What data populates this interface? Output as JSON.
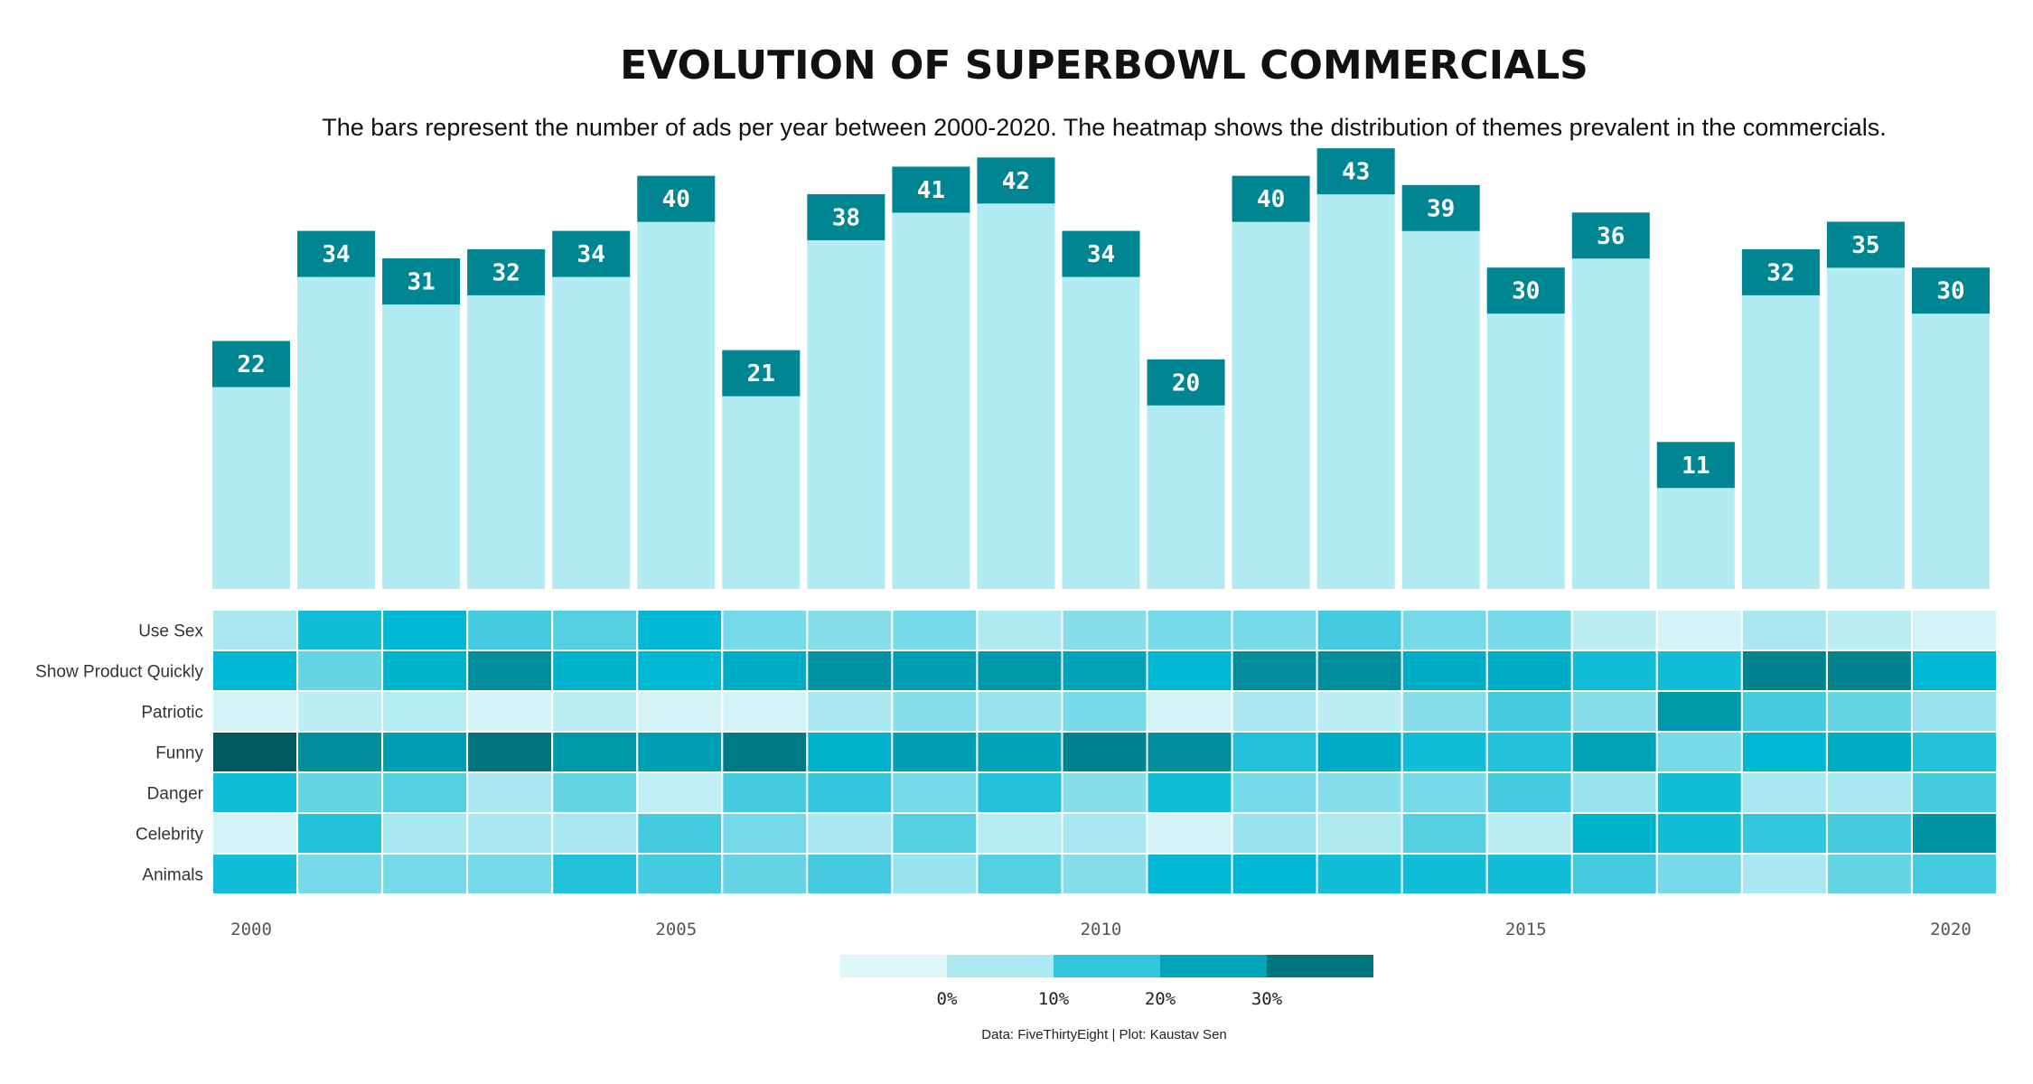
{
  "chart_data": {
    "type": "bar+heatmap",
    "title": "EVOLUTION OF SUPERBOWL COMMERCIALS",
    "subtitle": "The bars represent the number of ads per year between 2000-2020. The heatmap shows the distribution of themes prevalent in the commercials.",
    "caption": "Data: FiveThirtyEight | Plot: Kaustav Sen",
    "years": [
      2000,
      2001,
      2002,
      2003,
      2004,
      2005,
      2006,
      2007,
      2008,
      2009,
      2010,
      2011,
      2012,
      2013,
      2014,
      2015,
      2016,
      2017,
      2018,
      2019,
      2020
    ],
    "ad_counts": [
      22,
      34,
      31,
      32,
      34,
      40,
      21,
      38,
      41,
      42,
      34,
      20,
      40,
      43,
      39,
      30,
      36,
      11,
      32,
      35,
      30
    ],
    "x_ticks": [
      "2000",
      "2005",
      "2010",
      "2015",
      "2020"
    ],
    "themes": [
      "Use Sex",
      "Show Product Quickly",
      "Patriotic",
      "Funny",
      "Danger",
      "Celebrity",
      "Animals"
    ],
    "theme_share_percent": [
      [
        10,
        19,
        20,
        16,
        15,
        20,
        13,
        12,
        13,
        9,
        12,
        13,
        13,
        16,
        13,
        13,
        7,
        3,
        10,
        7,
        3
      ],
      [
        20,
        14,
        21,
        28,
        21,
        20,
        22,
        27,
        25,
        26,
        24,
        20,
        28,
        28,
        22,
        22,
        19,
        19,
        30,
        30,
        20
      ],
      [
        3,
        7,
        8,
        3,
        7,
        3,
        3,
        10,
        12,
        11,
        13,
        3,
        10,
        7,
        12,
        16,
        12,
        26,
        16,
        14,
        11
      ],
      [
        40,
        28,
        25,
        34,
        26,
        25,
        32,
        21,
        25,
        24,
        30,
        28,
        18,
        22,
        19,
        18,
        24,
        13,
        20,
        22,
        18
      ],
      [
        19,
        14,
        15,
        10,
        14,
        6,
        16,
        17,
        13,
        18,
        12,
        19,
        13,
        12,
        13,
        16,
        11,
        19,
        10,
        10,
        16
      ],
      [
        3,
        18,
        10,
        10,
        10,
        16,
        13,
        10,
        15,
        8,
        10,
        3,
        11,
        9,
        15,
        7,
        21,
        19,
        17,
        16,
        27
      ],
      [
        19,
        13,
        13,
        13,
        18,
        16,
        14,
        16,
        11,
        15,
        12,
        20,
        20,
        19,
        19,
        19,
        16,
        13,
        10,
        14,
        16
      ]
    ],
    "legend_ticks": [
      "0%",
      "10%",
      "20%",
      "30%"
    ],
    "legend_bins": [
      -10,
      0,
      10,
      20,
      30,
      40
    ],
    "legend_colors": [
      "#dff6f9",
      "#ade9f0",
      "#32c6dc",
      "#00a4bb",
      "#00767f"
    ],
    "colors": {
      "bar_fill": "#b3ebf2",
      "bar_cap": "#008593"
    }
  }
}
